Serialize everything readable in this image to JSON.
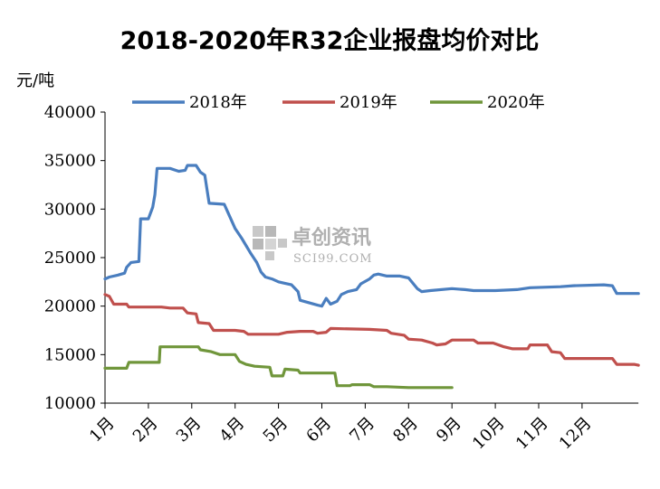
{
  "chart_data": {
    "type": "line",
    "title": "2018-2020年R32企业报盘均价对比",
    "ylabel": "元/吨",
    "ylim": [
      10000,
      40000
    ],
    "yticks": [
      10000,
      15000,
      20000,
      25000,
      30000,
      35000,
      40000
    ],
    "xlim": [
      1,
      13.3
    ],
    "xticks": [
      1,
      2,
      3,
      4,
      5,
      6,
      7,
      8,
      9,
      10,
      11,
      12
    ],
    "xtick_labels": [
      "1月",
      "2月",
      "3月",
      "4月",
      "5月",
      "6月",
      "7月",
      "8月",
      "9月",
      "10月",
      "11月",
      "12月"
    ],
    "grid": false,
    "legend_position": "top",
    "watermark": {
      "cn": "卓创资讯",
      "en": "SCI99.COM"
    },
    "series": [
      {
        "name": "2018年",
        "color": "#4a7ebf",
        "points": [
          [
            1.0,
            22800
          ],
          [
            1.1,
            23000
          ],
          [
            1.3,
            23200
          ],
          [
            1.45,
            23400
          ],
          [
            1.5,
            24000
          ],
          [
            1.6,
            24500
          ],
          [
            1.78,
            24600
          ],
          [
            1.82,
            29000
          ],
          [
            2.0,
            29000
          ],
          [
            2.1,
            30200
          ],
          [
            2.15,
            31500
          ],
          [
            2.2,
            34200
          ],
          [
            2.5,
            34200
          ],
          [
            2.7,
            33900
          ],
          [
            2.85,
            34000
          ],
          [
            2.9,
            34500
          ],
          [
            3.1,
            34500
          ],
          [
            3.2,
            33800
          ],
          [
            3.3,
            33500
          ],
          [
            3.4,
            30600
          ],
          [
            3.75,
            30500
          ],
          [
            3.85,
            29500
          ],
          [
            4.0,
            28000
          ],
          [
            4.15,
            27000
          ],
          [
            4.35,
            25500
          ],
          [
            4.5,
            24500
          ],
          [
            4.6,
            23500
          ],
          [
            4.7,
            23000
          ],
          [
            4.85,
            22800
          ],
          [
            5.0,
            22500
          ],
          [
            5.1,
            22400
          ],
          [
            5.3,
            22200
          ],
          [
            5.45,
            21500
          ],
          [
            5.5,
            20600
          ],
          [
            5.9,
            20100
          ],
          [
            6.0,
            20000
          ],
          [
            6.1,
            20800
          ],
          [
            6.2,
            20200
          ],
          [
            6.35,
            20500
          ],
          [
            6.45,
            21200
          ],
          [
            6.6,
            21500
          ],
          [
            6.8,
            21700
          ],
          [
            6.9,
            22300
          ],
          [
            7.1,
            22800
          ],
          [
            7.2,
            23200
          ],
          [
            7.3,
            23300
          ],
          [
            7.5,
            23100
          ],
          [
            7.8,
            23100
          ],
          [
            8.0,
            22900
          ],
          [
            8.2,
            21800
          ],
          [
            8.3,
            21500
          ],
          [
            8.5,
            21600
          ],
          [
            9.0,
            21800
          ],
          [
            9.3,
            21700
          ],
          [
            9.5,
            21600
          ],
          [
            10.0,
            21600
          ],
          [
            10.5,
            21700
          ],
          [
            10.8,
            21900
          ],
          [
            11.5,
            22000
          ],
          [
            11.8,
            22100
          ],
          [
            12.5,
            22200
          ],
          [
            12.7,
            22100
          ],
          [
            12.8,
            21300
          ],
          [
            13.3,
            21300
          ]
        ]
      },
      {
        "name": "2019年",
        "color": "#c0504d",
        "points": [
          [
            1.0,
            21200
          ],
          [
            1.1,
            21000
          ],
          [
            1.2,
            20200
          ],
          [
            1.5,
            20200
          ],
          [
            1.55,
            19900
          ],
          [
            2.3,
            19900
          ],
          [
            2.5,
            19800
          ],
          [
            2.8,
            19800
          ],
          [
            2.9,
            19300
          ],
          [
            3.1,
            19200
          ],
          [
            3.15,
            18300
          ],
          [
            3.4,
            18200
          ],
          [
            3.5,
            17500
          ],
          [
            3.75,
            17500
          ],
          [
            4.0,
            17500
          ],
          [
            4.2,
            17400
          ],
          [
            4.3,
            17100
          ],
          [
            5.0,
            17100
          ],
          [
            5.2,
            17300
          ],
          [
            5.5,
            17400
          ],
          [
            5.8,
            17400
          ],
          [
            5.9,
            17200
          ],
          [
            6.1,
            17300
          ],
          [
            6.2,
            17700
          ],
          [
            7.1,
            17600
          ],
          [
            7.5,
            17500
          ],
          [
            7.6,
            17200
          ],
          [
            7.9,
            17000
          ],
          [
            8.0,
            16600
          ],
          [
            8.3,
            16500
          ],
          [
            8.55,
            16200
          ],
          [
            8.65,
            16000
          ],
          [
            8.85,
            16100
          ],
          [
            9.0,
            16500
          ],
          [
            9.5,
            16500
          ],
          [
            9.6,
            16200
          ],
          [
            9.95,
            16200
          ],
          [
            10.2,
            15800
          ],
          [
            10.4,
            15600
          ],
          [
            10.75,
            15600
          ],
          [
            10.8,
            16000
          ],
          [
            11.2,
            16000
          ],
          [
            11.3,
            15300
          ],
          [
            11.5,
            15200
          ],
          [
            11.6,
            14600
          ],
          [
            12.7,
            14600
          ],
          [
            12.8,
            14000
          ],
          [
            13.2,
            14000
          ],
          [
            13.3,
            13900
          ]
        ]
      },
      {
        "name": "2020年",
        "color": "#70963b",
        "points": [
          [
            1.0,
            13600
          ],
          [
            1.5,
            13600
          ],
          [
            1.55,
            14200
          ],
          [
            2.25,
            14200
          ],
          [
            2.27,
            15800
          ],
          [
            3.15,
            15800
          ],
          [
            3.2,
            15500
          ],
          [
            3.45,
            15300
          ],
          [
            3.65,
            15000
          ],
          [
            4.0,
            15000
          ],
          [
            4.1,
            14300
          ],
          [
            4.25,
            14000
          ],
          [
            4.45,
            13800
          ],
          [
            4.8,
            13700
          ],
          [
            4.85,
            12800
          ],
          [
            5.1,
            12800
          ],
          [
            5.15,
            13500
          ],
          [
            5.45,
            13400
          ],
          [
            5.5,
            13100
          ],
          [
            6.3,
            13100
          ],
          [
            6.35,
            11800
          ],
          [
            6.65,
            11800
          ],
          [
            6.7,
            11900
          ],
          [
            7.1,
            11900
          ],
          [
            7.2,
            11700
          ],
          [
            7.5,
            11700
          ],
          [
            8.0,
            11600
          ],
          [
            8.5,
            11600
          ],
          [
            9.0,
            11600
          ]
        ]
      }
    ]
  }
}
